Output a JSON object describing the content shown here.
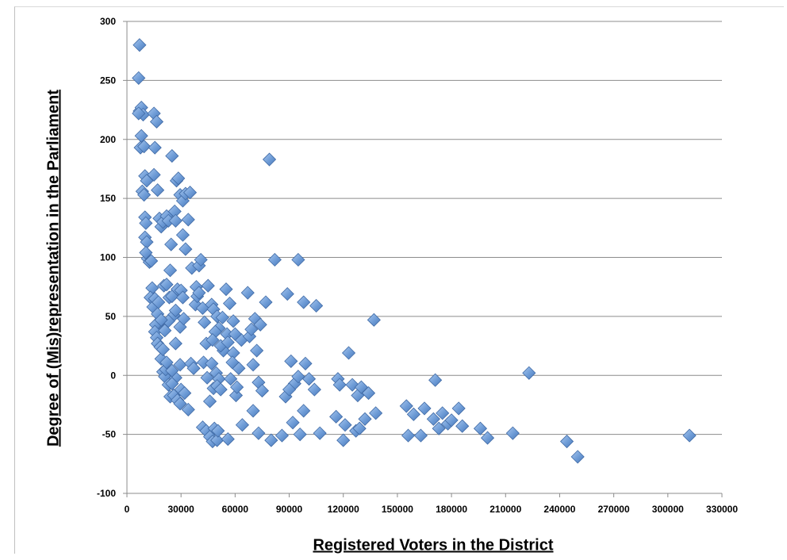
{
  "chart_data": {
    "type": "scatter",
    "title": "",
    "xlabel": "Registered Voters in the District",
    "ylabel": "Degree of (Mis)representation in the Parliament",
    "xlim": [
      0,
      330000
    ],
    "ylim": [
      -100,
      300
    ],
    "xticks": [
      "0",
      "30000",
      "60000",
      "90000",
      "120000",
      "150000",
      "180000",
      "210000",
      "240000",
      "270000",
      "300000",
      "330000"
    ],
    "yticks": [
      "-100",
      "-50",
      "0",
      "50",
      "100",
      "150",
      "200",
      "250",
      "300"
    ],
    "grid": "horizontal",
    "marker": "diamond",
    "color": "#6d9bd6",
    "points": [
      [
        7000,
        280
      ],
      [
        6500,
        252
      ],
      [
        7000,
        224
      ],
      [
        8000,
        227
      ],
      [
        9000,
        221
      ],
      [
        6500,
        222
      ],
      [
        8000,
        203
      ],
      [
        7500,
        193
      ],
      [
        9500,
        194
      ],
      [
        8500,
        156
      ],
      [
        9500,
        153
      ],
      [
        10000,
        169
      ],
      [
        11000,
        165
      ],
      [
        10000,
        134
      ],
      [
        10500,
        129
      ],
      [
        10000,
        117
      ],
      [
        11000,
        113
      ],
      [
        11500,
        99
      ],
      [
        12500,
        96
      ],
      [
        10500,
        104
      ],
      [
        13500,
        97
      ],
      [
        14000,
        74
      ],
      [
        13000,
        66
      ],
      [
        14500,
        58
      ],
      [
        15500,
        65
      ],
      [
        17000,
        52
      ],
      [
        17500,
        44
      ],
      [
        16000,
        43
      ],
      [
        15500,
        37
      ],
      [
        16500,
        32
      ],
      [
        17000,
        27
      ],
      [
        18500,
        24
      ],
      [
        19000,
        14
      ],
      [
        20000,
        3
      ],
      [
        21000,
        -1
      ],
      [
        21500,
        5
      ],
      [
        22000,
        11
      ],
      [
        23000,
        -8
      ],
      [
        24000,
        -18
      ],
      [
        26000,
        -17
      ],
      [
        27000,
        -2
      ],
      [
        25000,
        -7
      ],
      [
        28000,
        -21
      ],
      [
        29500,
        -24
      ],
      [
        30000,
        -12
      ],
      [
        32000,
        -15
      ],
      [
        34000,
        -29
      ],
      [
        15000,
        222
      ],
      [
        16500,
        215
      ],
      [
        15500,
        193
      ],
      [
        15000,
        170
      ],
      [
        17000,
        157
      ],
      [
        18000,
        133
      ],
      [
        19000,
        126
      ],
      [
        20000,
        130
      ],
      [
        22000,
        135
      ],
      [
        23000,
        131
      ],
      [
        25000,
        186
      ],
      [
        26500,
        139
      ],
      [
        27000,
        131
      ],
      [
        27500,
        165
      ],
      [
        28500,
        167
      ],
      [
        29500,
        153
      ],
      [
        31000,
        148
      ],
      [
        32500,
        154
      ],
      [
        31000,
        119
      ],
      [
        32500,
        107
      ],
      [
        34000,
        132
      ],
      [
        35000,
        155
      ],
      [
        36000,
        91
      ],
      [
        24500,
        111
      ],
      [
        24000,
        89
      ],
      [
        20500,
        76
      ],
      [
        22000,
        77
      ],
      [
        23500,
        66
      ],
      [
        25000,
        67
      ],
      [
        26000,
        51
      ],
      [
        27000,
        55
      ],
      [
        28000,
        73
      ],
      [
        30000,
        72
      ],
      [
        31000,
        66
      ],
      [
        29500,
        41
      ],
      [
        31500,
        48
      ],
      [
        27000,
        27
      ],
      [
        29500,
        9
      ],
      [
        25000,
        4
      ],
      [
        23000,
        46
      ],
      [
        21000,
        38
      ],
      [
        19000,
        47
      ],
      [
        20000,
        22
      ],
      [
        17500,
        62
      ],
      [
        35500,
        10
      ],
      [
        37000,
        6
      ],
      [
        38000,
        60
      ],
      [
        39000,
        67
      ],
      [
        40000,
        93
      ],
      [
        41000,
        98
      ],
      [
        38500,
        75
      ],
      [
        40000,
        70
      ],
      [
        42000,
        57
      ],
      [
        43000,
        45
      ],
      [
        44000,
        27
      ],
      [
        42500,
        11
      ],
      [
        44500,
        -2
      ],
      [
        46000,
        -22
      ],
      [
        48000,
        -11
      ],
      [
        47000,
        10
      ],
      [
        49500,
        2
      ],
      [
        51000,
        -3
      ],
      [
        50000,
        -9
      ],
      [
        52000,
        -12
      ],
      [
        53500,
        21
      ],
      [
        55500,
        35
      ],
      [
        57500,
        -3
      ],
      [
        59000,
        19
      ],
      [
        60500,
        -17
      ],
      [
        62000,
        6
      ],
      [
        63500,
        30
      ],
      [
        45000,
        76
      ],
      [
        47000,
        60
      ],
      [
        48000,
        56
      ],
      [
        50000,
        50
      ],
      [
        51000,
        40
      ],
      [
        53000,
        49
      ],
      [
        55000,
        73
      ],
      [
        57000,
        61
      ],
      [
        59000,
        46
      ],
      [
        60000,
        35
      ],
      [
        49000,
        37
      ],
      [
        47500,
        30
      ],
      [
        52000,
        25
      ],
      [
        56000,
        28
      ],
      [
        58500,
        11
      ],
      [
        61000,
        -10
      ],
      [
        42000,
        -44
      ],
      [
        44000,
        -47
      ],
      [
        46000,
        -52
      ],
      [
        47500,
        -56
      ],
      [
        48500,
        -45
      ],
      [
        50000,
        -55
      ],
      [
        50500,
        -47
      ],
      [
        56000,
        -54
      ],
      [
        64000,
        -42
      ],
      [
        70000,
        -30
      ],
      [
        73000,
        -49
      ],
      [
        80000,
        -55
      ],
      [
        86000,
        -51
      ],
      [
        88000,
        -18
      ],
      [
        91000,
        12
      ],
      [
        93000,
        -7
      ],
      [
        95000,
        -1
      ],
      [
        96000,
        -50
      ],
      [
        98000,
        -30
      ],
      [
        99000,
        10
      ],
      [
        67000,
        70
      ],
      [
        68000,
        33
      ],
      [
        69000,
        39
      ],
      [
        70000,
        9
      ],
      [
        71000,
        48
      ],
      [
        72000,
        21
      ],
      [
        73000,
        -6
      ],
      [
        74000,
        43
      ],
      [
        75000,
        -13
      ],
      [
        77000,
        62
      ],
      [
        79000,
        183
      ],
      [
        82000,
        98
      ],
      [
        89000,
        69
      ],
      [
        95000,
        98
      ],
      [
        98000,
        62
      ],
      [
        101000,
        -3
      ],
      [
        104000,
        -12
      ],
      [
        105000,
        59
      ],
      [
        107000,
        -49
      ],
      [
        116000,
        -35
      ],
      [
        117000,
        -3
      ],
      [
        118000,
        -8
      ],
      [
        120000,
        -55
      ],
      [
        121000,
        -42
      ],
      [
        123000,
        19
      ],
      [
        125000,
        -8
      ],
      [
        127000,
        -47
      ],
      [
        128000,
        -17
      ],
      [
        129000,
        -45
      ],
      [
        130000,
        -10
      ],
      [
        132000,
        -37
      ],
      [
        134000,
        -15
      ],
      [
        137000,
        47
      ],
      [
        138000,
        -32
      ],
      [
        92000,
        -40
      ],
      [
        90000,
        -12
      ],
      [
        155000,
        -26
      ],
      [
        156000,
        -51
      ],
      [
        159000,
        -33
      ],
      [
        163000,
        -51
      ],
      [
        165000,
        -28
      ],
      [
        170000,
        -37
      ],
      [
        171000,
        -4
      ],
      [
        173000,
        -45
      ],
      [
        175000,
        -32
      ],
      [
        178000,
        -41
      ],
      [
        180000,
        -38
      ],
      [
        184000,
        -28
      ],
      [
        186000,
        -43
      ],
      [
        196000,
        -45
      ],
      [
        200000,
        -53
      ],
      [
        214000,
        -49
      ],
      [
        223000,
        2
      ],
      [
        244000,
        -56
      ],
      [
        250000,
        -69
      ],
      [
        312000,
        -51
      ]
    ]
  }
}
